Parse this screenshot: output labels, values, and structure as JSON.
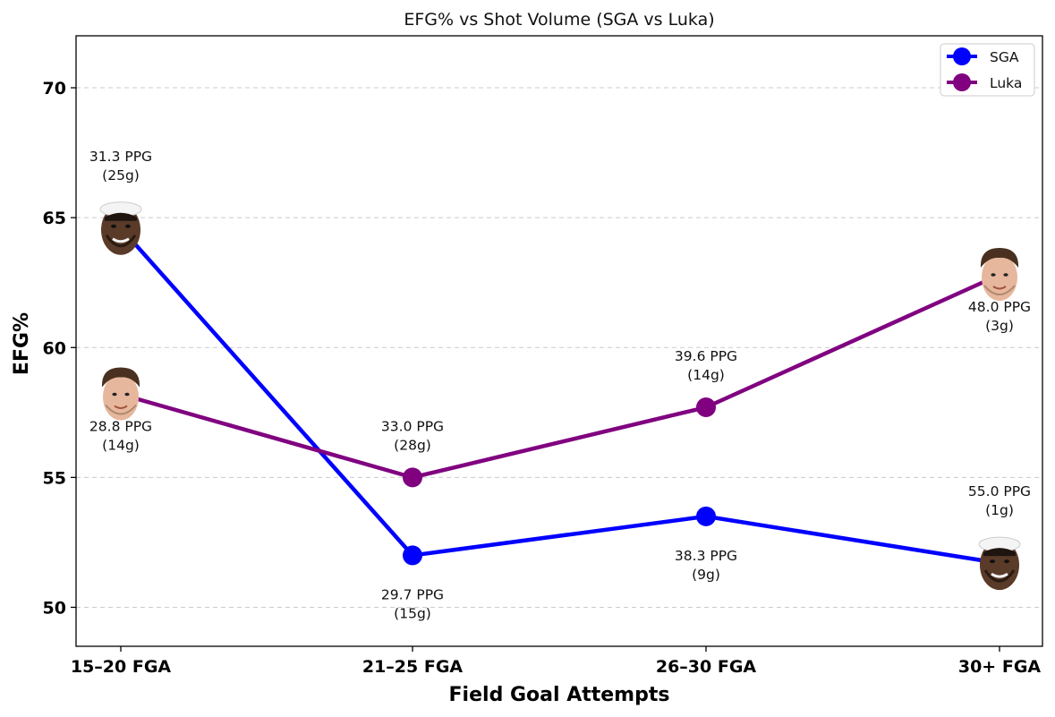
{
  "chart_data": {
    "type": "line",
    "title": "EFG% vs Shot Volume (SGA vs Luka)",
    "xlabel": "Field Goal Attempts",
    "ylabel": "EFG%",
    "categories": [
      "15–20 FGA",
      "21–25 FGA",
      "26–30 FGA",
      "30+ FGA"
    ],
    "ylim": [
      48.5,
      72
    ],
    "yticks": [
      50,
      55,
      60,
      65,
      70
    ],
    "grid": "horizontal dashed",
    "legend_position": "top-right",
    "series": [
      {
        "name": "SGA",
        "color": "#0000ff",
        "values": [
          64.6,
          52.0,
          53.5,
          51.7
        ],
        "markers": [
          "photo-face-sga",
          "dot",
          "dot",
          "photo-face-sga"
        ],
        "annotations": [
          {
            "ppg": "31.3 PPG",
            "games": "(25g)",
            "place": "above"
          },
          {
            "ppg": "29.7 PPG",
            "games": "(15g)",
            "place": "below"
          },
          {
            "ppg": "38.3 PPG",
            "games": "(9g)",
            "place": "below"
          },
          {
            "ppg": "55.0 PPG",
            "games": "(1g)",
            "place": "above"
          }
        ]
      },
      {
        "name": "Luka",
        "color": "#800080",
        "values": [
          58.2,
          55.0,
          57.7,
          62.8
        ],
        "markers": [
          "photo-face-luka",
          "dot",
          "dot",
          "photo-face-luka"
        ],
        "annotations": [
          {
            "ppg": "28.8 PPG",
            "games": "(14g)",
            "place": "below"
          },
          {
            "ppg": "33.0 PPG",
            "games": "(28g)",
            "place": "above"
          },
          {
            "ppg": "39.6 PPG",
            "games": "(14g)",
            "place": "above"
          },
          {
            "ppg": "48.0 PPG",
            "games": "(3g)",
            "place": "below"
          }
        ]
      }
    ]
  }
}
